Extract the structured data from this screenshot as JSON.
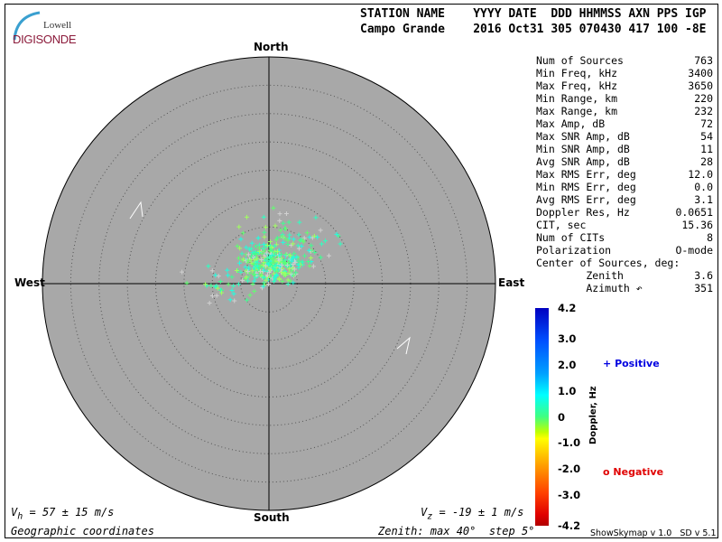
{
  "logo": {
    "line1": "Lowell",
    "line2": "DIGISONDE"
  },
  "header": {
    "columns": "STATION NAME    YYYY DATE  DDD HHMMSS AXN PPS IGP",
    "values": "Campo Grande    2016 Oct31 305 070430 417 100 -8E"
  },
  "compass": {
    "north": "North",
    "south": "South",
    "east": "East",
    "west": "West"
  },
  "stats": [
    {
      "label": "Num of Sources",
      "value": "763"
    },
    {
      "label": "Min Freq, kHz",
      "value": "3400"
    },
    {
      "label": "Max Freq, kHz",
      "value": "3650"
    },
    {
      "label": "Min Range, km",
      "value": "220"
    },
    {
      "label": "Max Range, km",
      "value": "232"
    },
    {
      "label": "Max Amp, dB",
      "value": "72"
    },
    {
      "label": "Max SNR Amp, dB",
      "value": "54"
    },
    {
      "label": "Min SNR Amp, dB",
      "value": "11"
    },
    {
      "label": "Avg SNR Amp, dB",
      "value": "28"
    },
    {
      "label": "Max RMS Err, deg",
      "value": "12.0"
    },
    {
      "label": "Min RMS Err, deg",
      "value": "0.0"
    },
    {
      "label": "Avg RMS Err, deg",
      "value": "3.1"
    },
    {
      "label": "Doppler Res, Hz",
      "value": "0.0651"
    },
    {
      "label": "CIT, sec",
      "value": "15.36"
    },
    {
      "label": "Num of CITs",
      "value": "8"
    },
    {
      "label": "Polarization",
      "value": "O-mode"
    },
    {
      "label": "Center of Sources, deg:",
      "value": ""
    },
    {
      "label": "        Zenith",
      "value": "3.6"
    },
    {
      "label": "        Azimuth ↶",
      "value": "351"
    }
  ],
  "colorbar": {
    "title": "Doppler, Hz",
    "ticks": [
      "4.2",
      "3.0",
      "2.0",
      "1.0",
      "0",
      "-1.0",
      "-2.0",
      "-3.0",
      "-4.2"
    ],
    "range": [
      -4.2,
      4.2
    ]
  },
  "legend": {
    "positive": "Positive",
    "negative": "Negative",
    "positive_symbol": "+",
    "negative_symbol": "o",
    "positive_color": "#0000e0",
    "negative_color": "#e00000"
  },
  "footer": {
    "vh_label": "V",
    "vh_sub": "h",
    "vh_value": " = 57 ± 15 m/s",
    "vz_label": "V",
    "vz_sub": "z",
    "vz_value": " = -19 ± 1 m/s",
    "coords": "Geographic coordinates",
    "zenith": "Zenith: max 40°  step 5°",
    "version": "ShowSkymap v 1.0   SD v 5.1"
  },
  "skymap": {
    "zenith_max_deg": 40,
    "zenith_step_deg": 5,
    "background": "#a8a8a8",
    "center_zenith_deg": 3.6,
    "center_azimuth_deg": 351
  }
}
